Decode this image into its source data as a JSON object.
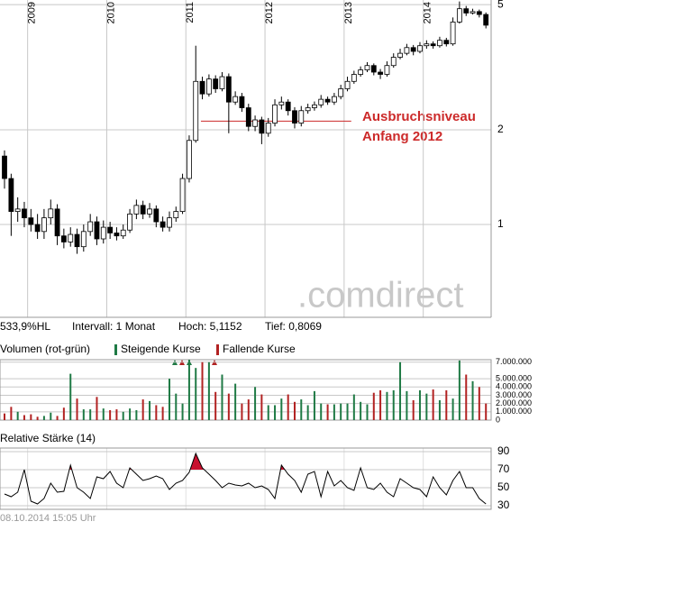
{
  "chart_data": [
    {
      "type": "candlestick",
      "x": [
        2008.708,
        2008.792,
        2008.875,
        2008.958,
        2009.042,
        2009.125,
        2009.208,
        2009.292,
        2009.375,
        2009.458,
        2009.542,
        2009.625,
        2009.708,
        2009.792,
        2009.875,
        2009.958,
        2010.042,
        2010.125,
        2010.208,
        2010.292,
        2010.375,
        2010.458,
        2010.542,
        2010.625,
        2010.708,
        2010.792,
        2010.875,
        2010.958,
        2011.042,
        2011.125,
        2011.208,
        2011.292,
        2011.375,
        2011.458,
        2011.542,
        2011.625,
        2011.708,
        2011.792,
        2011.875,
        2011.958,
        2012.042,
        2012.125,
        2012.208,
        2012.292,
        2012.375,
        2012.458,
        2012.542,
        2012.625,
        2012.708,
        2012.792,
        2012.875,
        2012.958,
        2013.042,
        2013.125,
        2013.208,
        2013.292,
        2013.375,
        2013.458,
        2013.542,
        2013.625,
        2013.708,
        2013.792,
        2013.875,
        2013.958,
        2014.042,
        2014.125,
        2014.208,
        2014.292,
        2014.375,
        2014.458,
        2014.542,
        2014.625,
        2014.708,
        2014.792
      ],
      "open": [
        1.65,
        1.4,
        1.1,
        1.12,
        1.05,
        1.0,
        0.95,
        1.05,
        1.12,
        0.92,
        0.88,
        0.93,
        0.85,
        0.95,
        1.02,
        0.9,
        0.98,
        0.94,
        0.92,
        0.96,
        1.08,
        1.15,
        1.08,
        1.12,
        1.02,
        0.98,
        1.05,
        1.1,
        1.4,
        1.85,
        2.85,
        2.6,
        2.9,
        2.7,
        2.95,
        2.45,
        2.55,
        2.35,
        2.05,
        2.15,
        1.95,
        2.1,
        2.4,
        2.45,
        2.3,
        2.1,
        2.3,
        2.35,
        2.4,
        2.5,
        2.45,
        2.55,
        2.7,
        2.85,
        3.0,
        3.1,
        3.2,
        3.05,
        3.0,
        3.2,
        3.4,
        3.5,
        3.65,
        3.55,
        3.7,
        3.75,
        3.7,
        3.85,
        3.75,
        4.4,
        4.85,
        4.7,
        4.75,
        4.65
      ],
      "high": [
        1.72,
        1.45,
        1.22,
        1.18,
        1.12,
        1.08,
        1.12,
        1.2,
        1.16,
        0.97,
        0.98,
        0.97,
        1.0,
        1.08,
        1.06,
        1.03,
        1.02,
        0.98,
        1.0,
        1.12,
        1.2,
        1.19,
        1.17,
        1.15,
        1.06,
        1.1,
        1.14,
        1.45,
        1.92,
        3.7,
        2.95,
        3.0,
        2.98,
        3.05,
        3.02,
        2.65,
        2.62,
        2.42,
        2.22,
        2.2,
        2.18,
        2.5,
        2.55,
        2.5,
        2.36,
        2.38,
        2.42,
        2.46,
        2.58,
        2.55,
        2.62,
        2.78,
        2.95,
        3.08,
        3.18,
        3.28,
        3.25,
        3.12,
        3.3,
        3.5,
        3.62,
        3.75,
        3.72,
        3.8,
        3.85,
        3.82,
        3.95,
        3.92,
        4.55,
        5.1152,
        4.95,
        4.85,
        4.82,
        4.72
      ],
      "low": [
        1.3,
        0.92,
        1.02,
        0.98,
        0.95,
        0.9,
        0.9,
        1.0,
        0.86,
        0.84,
        0.85,
        0.8069,
        0.82,
        0.92,
        0.86,
        0.87,
        0.9,
        0.89,
        0.9,
        0.94,
        1.04,
        1.04,
        1.05,
        0.98,
        0.95,
        0.95,
        1.02,
        1.08,
        1.36,
        1.82,
        2.5,
        2.55,
        2.62,
        2.65,
        1.95,
        2.4,
        2.28,
        1.98,
        1.98,
        1.8,
        1.9,
        2.05,
        2.32,
        2.22,
        2.02,
        2.05,
        2.25,
        2.3,
        2.35,
        2.4,
        2.4,
        2.5,
        2.65,
        2.8,
        2.95,
        3.05,
        2.98,
        2.9,
        2.95,
        3.15,
        3.35,
        3.45,
        3.45,
        3.5,
        3.62,
        3.62,
        3.65,
        3.68,
        3.7,
        4.35,
        4.6,
        4.65,
        4.55,
        4.2
      ],
      "close": [
        1.4,
        1.1,
        1.12,
        1.05,
        1.0,
        0.95,
        1.05,
        1.12,
        0.92,
        0.88,
        0.93,
        0.85,
        0.95,
        1.02,
        0.9,
        0.98,
        0.94,
        0.92,
        0.96,
        1.08,
        1.15,
        1.08,
        1.12,
        1.02,
        0.98,
        1.05,
        1.1,
        1.4,
        1.85,
        2.85,
        2.6,
        2.9,
        2.7,
        2.95,
        2.45,
        2.55,
        2.35,
        2.05,
        2.15,
        1.95,
        2.1,
        2.4,
        2.45,
        2.3,
        2.1,
        2.3,
        2.35,
        2.4,
        2.5,
        2.45,
        2.55,
        2.7,
        2.85,
        3.0,
        3.1,
        3.2,
        3.05,
        3.0,
        3.2,
        3.4,
        3.5,
        3.65,
        3.55,
        3.7,
        3.75,
        3.7,
        3.85,
        3.75,
        4.4,
        4.85,
        4.7,
        4.75,
        4.65,
        4.3
      ],
      "up_color": "#ffffff",
      "down_color": "#000000",
      "xlim": [
        2008.651,
        2014.858
      ],
      "xticks": [
        2009,
        2010,
        2011,
        2012,
        2013,
        2014
      ],
      "ylim": [
        0.507,
        5.17
      ],
      "yticks": [
        1,
        2,
        5
      ],
      "log_scale": true,
      "grid": true,
      "stats": [
        "533,9%HL",
        "Intervall: 1 Monat",
        "Hoch: 5,1152",
        "Tief: 0,8069"
      ],
      "annotation": [
        "Ausbruchsniveau",
        "Anfang 2012"
      ],
      "level_line": {
        "value": 2.13,
        "x": [
          2011.19,
          2013.09
        ],
        "color": "#cc2a2a"
      },
      "watermark": ".comdirect"
    },
    {
      "type": "bar",
      "title": "Volumen (rot-grün)",
      "legend": [
        {
          "name": "Steigende Kurse",
          "color": "#1f7a45"
        },
        {
          "name": "Fallende Kurse",
          "color": "#b22222"
        }
      ],
      "values": [
        800000,
        1600000,
        1000000,
        600000,
        700000,
        400000,
        500000,
        900000,
        500000,
        1500000,
        5600000,
        2600000,
        1300000,
        1300000,
        2800000,
        1400000,
        1200000,
        1300000,
        1000000,
        1400000,
        1200000,
        2500000,
        2300000,
        1800000,
        1600000,
        5000000,
        3200000,
        2000000,
        7300000,
        6300000,
        7000000,
        7000000,
        3400000,
        5500000,
        3200000,
        4400000,
        2000000,
        2500000,
        4000000,
        3100000,
        1800000,
        1800000,
        2600000,
        3100000,
        2200000,
        2500000,
        1800000,
        3500000,
        2000000,
        1900000,
        1900000,
        2000000,
        2000000,
        3100000,
        2200000,
        1900000,
        3300000,
        3600000,
        3400000,
        3600000,
        7000000,
        3500000,
        2400000,
        3600000,
        3200000,
        3700000,
        2400000,
        3600000,
        2600000,
        7200000,
        5500000,
        4700000,
        4000000,
        2000000
      ],
      "ylim": [
        0,
        7300000
      ],
      "yticks": [
        {
          "value": 0,
          "label": "0"
        },
        {
          "value": 1000000,
          "label": "1.000.000"
        },
        {
          "value": 2000000,
          "label": "2.000.000"
        },
        {
          "value": 3000000,
          "label": "3.000.000"
        },
        {
          "value": 4000000,
          "label": "4.000.000"
        },
        {
          "value": 5000000,
          "label": "5.000.000"
        },
        {
          "value": 7000000,
          "label": "7.000.000"
        }
      ]
    },
    {
      "type": "line",
      "title": "Relative Stärke (14)",
      "color": "#000000",
      "highlight_above": 70,
      "highlight_color": "#c8102e",
      "values": [
        43,
        40,
        45,
        70,
        35,
        32,
        38,
        55,
        45,
        46,
        75,
        50,
        45,
        38,
        62,
        60,
        68,
        55,
        50,
        72,
        65,
        58,
        60,
        63,
        60,
        48,
        55,
        58,
        67,
        88,
        72,
        65,
        58,
        50,
        55,
        53,
        52,
        55,
        50,
        52,
        48,
        38,
        75,
        65,
        58,
        45,
        65,
        68,
        40,
        68,
        52,
        58,
        50,
        47,
        72,
        50,
        48,
        55,
        45,
        40,
        60,
        55,
        50,
        48,
        40,
        62,
        50,
        42,
        58,
        68,
        50,
        50,
        38,
        32
      ],
      "ylim": [
        26,
        94
      ],
      "yticks": [
        30,
        50,
        70,
        90
      ],
      "timestamp": "08.10.2014 15:05 Uhr"
    }
  ]
}
